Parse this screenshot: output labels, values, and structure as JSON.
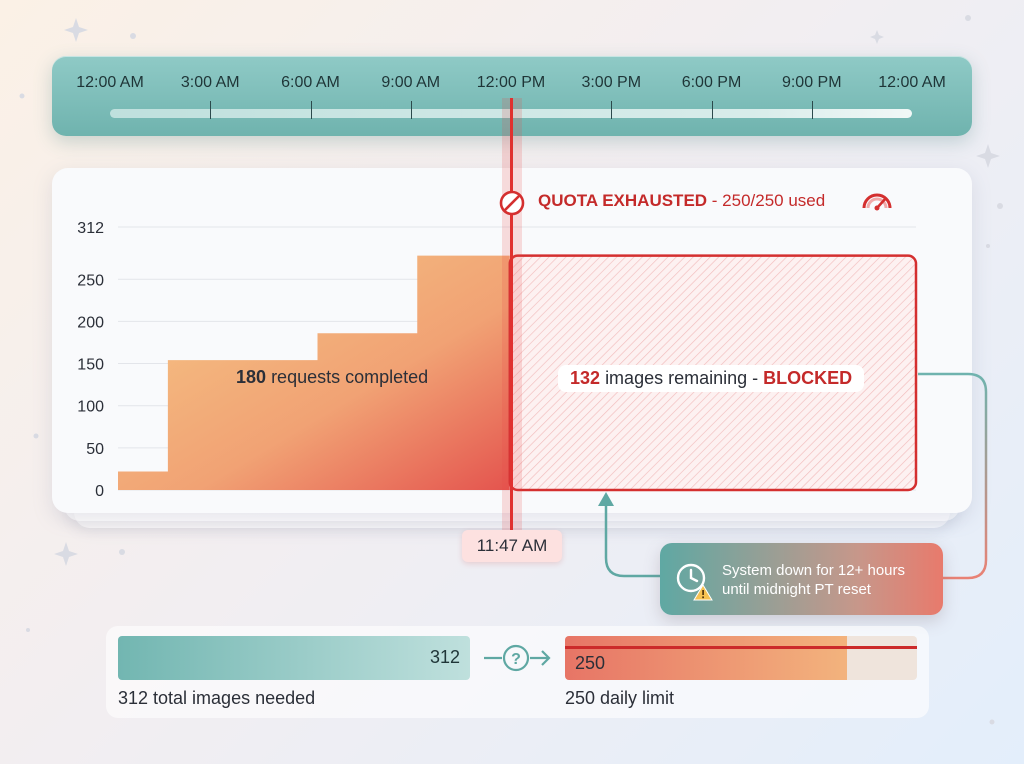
{
  "timeline": {
    "labels": [
      "12:00 AM",
      "3:00 AM",
      "6:00 AM",
      "9:00 AM",
      "12:00 PM",
      "3:00 PM",
      "6:00 PM",
      "9:00 PM",
      "12:00 AM"
    ]
  },
  "chart_data": {
    "type": "area",
    "x_start": "12:00 AM",
    "x_end": "12:00 AM",
    "marker_time": "11:47 AM",
    "y_ticks": [
      "0",
      "50",
      "100",
      "150",
      "200",
      "250",
      "312"
    ],
    "ylim": [
      0,
      312
    ],
    "steps": [
      {
        "from": "12:00 AM",
        "to": "1:30 AM",
        "value": 22
      },
      {
        "from": "1:30 AM",
        "to": "6:00 AM",
        "value": 154
      },
      {
        "from": "6:00 AM",
        "to": "9:00 AM",
        "value": 186
      },
      {
        "from": "9:00 AM",
        "to": "11:47 AM",
        "value": 278
      }
    ],
    "blocked_region": {
      "from": "11:47 AM",
      "to": "12:00 AM",
      "value": 278
    },
    "completed_count": "180",
    "completed_text": "requests completed",
    "remaining_count": "132",
    "remaining_text": "images remaining - ",
    "blocked_word": "BLOCKED",
    "colors": {
      "completed_start": "#f2bd7c",
      "completed_end": "#e4776a",
      "blocked": "#d42f2f",
      "teal": "#6fb3ae"
    }
  },
  "quota": {
    "title": "QUOTA EXHAUSTED",
    "detail": " - 250/250 used",
    "icon": "speedometer-icon"
  },
  "marker_time_label": "11:47 AM",
  "callout": {
    "line1": "System down for 12+ hours",
    "line2": "until midnight PT reset",
    "icon": "clock-warning-icon"
  },
  "comparison": {
    "needed_value": "312",
    "needed_caption": "312 total images needed",
    "limit_value": "250",
    "limit_caption": "250 daily limit",
    "limit_fill_fraction": 0.8,
    "connector_icon": "question-arrow-icon"
  }
}
